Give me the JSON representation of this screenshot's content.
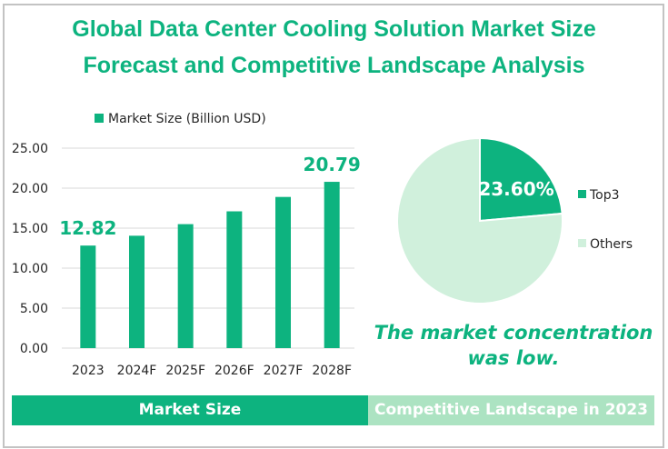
{
  "title_line1": "Global Data Center Cooling Solution Market Size",
  "title_line2": "Forecast and Competitive Landscape Analysis",
  "colors": {
    "primary": "#0db37f",
    "light": "#d0f0dc",
    "banner_light": "#ace3c2",
    "grid": "#d9d9d9",
    "text": "#262626"
  },
  "banners": {
    "left": "Market Size",
    "right": "Competitive Landscape in 2023"
  },
  "note": {
    "line1": "The market concentration",
    "line2": "was low."
  },
  "chart_data": [
    {
      "type": "bar",
      "legend": "Market Size (Billion USD)",
      "legend_position": "top",
      "categories": [
        "2023",
        "2024F",
        "2025F",
        "2026F",
        "2027F",
        "2028F"
      ],
      "values": [
        12.82,
        14.05,
        15.5,
        17.1,
        18.9,
        20.79
      ],
      "data_labels": {
        "0": "12.82",
        "5": "20.79"
      },
      "yticks": [
        "0.00",
        "5.00",
        "10.00",
        "15.00",
        "20.00",
        "25.00"
      ],
      "ylim": [
        0,
        25
      ],
      "grid": true
    },
    {
      "type": "pie",
      "slices": [
        {
          "label": "Top3",
          "value": 23.6,
          "data_label": "23.60%"
        },
        {
          "label": "Others",
          "value": 76.4
        }
      ],
      "legend_position": "right"
    }
  ]
}
